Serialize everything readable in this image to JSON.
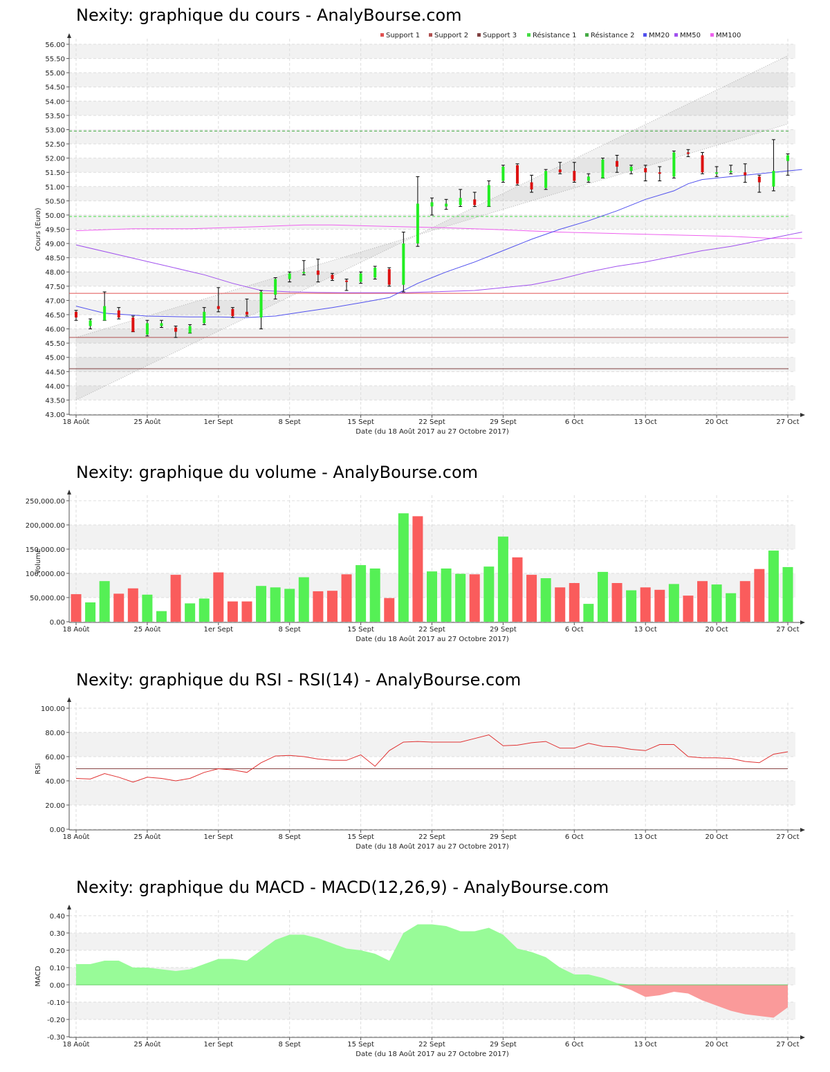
{
  "date_axis": {
    "xlabel": "Date (du 18 Août 2017 au 27 Octobre 2017)",
    "tick_labels": [
      "18 Août",
      "25 Août",
      "1er Sept",
      "8 Sept",
      "15 Sept",
      "22 Sept",
      "29 Sept",
      "6 Oct",
      "13 Oct",
      "20 Oct",
      "27 Oct"
    ],
    "tick_index": [
      0,
      5,
      10,
      15,
      20,
      25,
      30,
      35,
      40,
      45,
      50
    ]
  },
  "chart_data": [
    {
      "type": "candlestick",
      "title": "Nexity: graphique du cours - AnalyBourse.com",
      "xlabel": "Date (du 18 Août 2017 au 27 Octobre 2017)",
      "ylabel": "Cours (Euro)",
      "ylim": [
        43,
        56
      ],
      "yticks": [
        "43.00",
        "43.50",
        "44.00",
        "44.50",
        "45.00",
        "45.50",
        "46.00",
        "46.50",
        "47.00",
        "47.50",
        "48.00",
        "48.50",
        "49.00",
        "49.50",
        "50.00",
        "50.50",
        "51.00",
        "51.50",
        "52.00",
        "52.50",
        "53.00",
        "53.50",
        "54.00",
        "54.50",
        "55.00",
        "55.50",
        "56.00"
      ],
      "legend": [
        "Support 1",
        "Support 2",
        "Support 3",
        "Résistance 1",
        "Résistance 2",
        "MM20",
        "MM50",
        "MM100"
      ],
      "legend_colors": [
        "#e05050",
        "#b05050",
        "#804040",
        "#44dd44",
        "#44aa44",
        "#5050ee",
        "#a050ee",
        "#ee60ee"
      ],
      "legend_position": "top-right",
      "candles": [
        {
          "o": 46.6,
          "c": 46.4,
          "h": 46.65,
          "l": 46.3
        },
        {
          "o": 46.1,
          "c": 46.3,
          "h": 46.35,
          "l": 46.0
        },
        {
          "o": 46.3,
          "c": 46.8,
          "h": 47.3,
          "l": 46.3
        },
        {
          "o": 46.65,
          "c": 46.4,
          "h": 46.75,
          "l": 46.35
        },
        {
          "o": 46.4,
          "c": 45.9,
          "h": 46.45,
          "l": 45.9
        },
        {
          "o": 45.8,
          "c": 46.2,
          "h": 46.3,
          "l": 45.75
        },
        {
          "o": 46.1,
          "c": 46.2,
          "h": 46.3,
          "l": 46.05
        },
        {
          "o": 46.05,
          "c": 45.9,
          "h": 46.1,
          "l": 45.7
        },
        {
          "o": 45.85,
          "c": 46.1,
          "h": 46.15,
          "l": 45.85
        },
        {
          "o": 46.2,
          "c": 46.6,
          "h": 46.75,
          "l": 46.15
        },
        {
          "o": 46.8,
          "c": 46.7,
          "h": 47.45,
          "l": 46.6
        },
        {
          "o": 46.7,
          "c": 46.45,
          "h": 46.75,
          "l": 46.4
        },
        {
          "o": 46.6,
          "c": 46.5,
          "h": 47.05,
          "l": 46.45
        },
        {
          "o": 46.4,
          "c": 47.3,
          "h": 47.35,
          "l": 46.0
        },
        {
          "o": 47.2,
          "c": 47.75,
          "h": 47.8,
          "l": 47.05
        },
        {
          "o": 47.75,
          "c": 47.95,
          "h": 48.0,
          "l": 47.65
        },
        {
          "o": 47.95,
          "c": 48.0,
          "h": 48.4,
          "l": 47.9
        },
        {
          "o": 48.05,
          "c": 47.9,
          "h": 48.45,
          "l": 47.65
        },
        {
          "o": 47.9,
          "c": 47.75,
          "h": 47.95,
          "l": 47.7
        },
        {
          "o": 47.7,
          "c": 47.65,
          "h": 47.75,
          "l": 47.35
        },
        {
          "o": 47.65,
          "c": 47.95,
          "h": 48.0,
          "l": 47.6
        },
        {
          "o": 47.8,
          "c": 48.15,
          "h": 48.2,
          "l": 47.75
        },
        {
          "o": 48.1,
          "c": 47.55,
          "h": 48.15,
          "l": 47.5
        },
        {
          "o": 47.55,
          "c": 49.0,
          "h": 49.4,
          "l": 47.3
        },
        {
          "o": 49.0,
          "c": 50.4,
          "h": 51.35,
          "l": 48.9
        },
        {
          "o": 50.3,
          "c": 50.45,
          "h": 50.6,
          "l": 50.0
        },
        {
          "o": 50.3,
          "c": 50.4,
          "h": 50.55,
          "l": 50.2
        },
        {
          "o": 50.35,
          "c": 50.6,
          "h": 50.9,
          "l": 50.3
        },
        {
          "o": 50.55,
          "c": 50.35,
          "h": 50.8,
          "l": 50.3
        },
        {
          "o": 50.3,
          "c": 51.05,
          "h": 51.2,
          "l": 50.3
        },
        {
          "o": 51.2,
          "c": 51.7,
          "h": 51.75,
          "l": 51.15
        },
        {
          "o": 51.75,
          "c": 51.1,
          "h": 51.8,
          "l": 51.05
        },
        {
          "o": 51.15,
          "c": 50.9,
          "h": 51.4,
          "l": 50.8
        },
        {
          "o": 50.95,
          "c": 51.55,
          "h": 51.6,
          "l": 50.9
        },
        {
          "o": 51.6,
          "c": 51.5,
          "h": 51.85,
          "l": 51.45
        },
        {
          "o": 51.55,
          "c": 51.2,
          "h": 51.85,
          "l": 51.15
        },
        {
          "o": 51.2,
          "c": 51.35,
          "h": 51.45,
          "l": 51.15
        },
        {
          "o": 51.3,
          "c": 51.95,
          "h": 52.0,
          "l": 51.3
        },
        {
          "o": 51.9,
          "c": 51.7,
          "h": 52.1,
          "l": 51.5
        },
        {
          "o": 51.55,
          "c": 51.7,
          "h": 51.75,
          "l": 51.45
        },
        {
          "o": 51.65,
          "c": 51.5,
          "h": 51.75,
          "l": 51.2
        },
        {
          "o": 51.5,
          "c": 51.45,
          "h": 51.7,
          "l": 51.2
        },
        {
          "o": 51.35,
          "c": 52.2,
          "h": 52.25,
          "l": 51.3
        },
        {
          "o": 52.2,
          "c": 52.15,
          "h": 52.3,
          "l": 52.05
        },
        {
          "o": 52.1,
          "c": 51.5,
          "h": 52.2,
          "l": 51.45
        },
        {
          "o": 51.45,
          "c": 51.5,
          "h": 51.7,
          "l": 51.35
        },
        {
          "o": 51.5,
          "c": 51.55,
          "h": 51.75,
          "l": 51.45
        },
        {
          "o": 51.5,
          "c": 51.4,
          "h": 51.8,
          "l": 51.15
        },
        {
          "o": 51.35,
          "c": 51.15,
          "h": 51.4,
          "l": 50.8
        },
        {
          "o": 51.0,
          "c": 51.55,
          "h": 52.65,
          "l": 50.85
        },
        {
          "o": 51.9,
          "c": 52.1,
          "h": 52.15,
          "l": 51.4
        }
      ],
      "support_1": 47.25,
      "support_2": 45.7,
      "support_3": 44.6,
      "resistance_1": 49.95,
      "resistance_2": 52.95,
      "channel_lower": [
        45.7,
        53.2
      ],
      "channel_upper": [
        43.5,
        55.6
      ],
      "mm20": [
        [
          0,
          46.8
        ],
        [
          2,
          46.55
        ],
        [
          5,
          46.45
        ],
        [
          8,
          46.42
        ],
        [
          10,
          46.42
        ],
        [
          12,
          46.4
        ],
        [
          14,
          46.45
        ],
        [
          16,
          46.6
        ],
        [
          18,
          46.75
        ],
        [
          20,
          46.92
        ],
        [
          22,
          47.1
        ],
        [
          24,
          47.6
        ],
        [
          26,
          48.0
        ],
        [
          28,
          48.35
        ],
        [
          30,
          48.75
        ],
        [
          32,
          49.15
        ],
        [
          34,
          49.5
        ],
        [
          36,
          49.8
        ],
        [
          38,
          50.15
        ],
        [
          40,
          50.55
        ],
        [
          42,
          50.85
        ],
        [
          43,
          51.1
        ],
        [
          44,
          51.25
        ],
        [
          46,
          51.35
        ],
        [
          48,
          51.45
        ],
        [
          50,
          51.55
        ],
        [
          51,
          51.6
        ]
      ],
      "mm50": [
        [
          0,
          48.95
        ],
        [
          3,
          48.6
        ],
        [
          6,
          48.25
        ],
        [
          9,
          47.9
        ],
        [
          11,
          47.6
        ],
        [
          13,
          47.35
        ],
        [
          15,
          47.3
        ],
        [
          17,
          47.28
        ],
        [
          19,
          47.27
        ],
        [
          21,
          47.27
        ],
        [
          23,
          47.27
        ],
        [
          25,
          47.3
        ],
        [
          28,
          47.35
        ],
        [
          30,
          47.45
        ],
        [
          32,
          47.55
        ],
        [
          34,
          47.75
        ],
        [
          36,
          48.0
        ],
        [
          38,
          48.2
        ],
        [
          40,
          48.35
        ],
        [
          42,
          48.55
        ],
        [
          44,
          48.75
        ],
        [
          46,
          48.9
        ],
        [
          48,
          49.1
        ],
        [
          50,
          49.3
        ],
        [
          51,
          49.4
        ]
      ],
      "mm100": [
        [
          0,
          49.45
        ],
        [
          4,
          49.52
        ],
        [
          8,
          49.52
        ],
        [
          12,
          49.58
        ],
        [
          16,
          49.65
        ],
        [
          18,
          49.65
        ],
        [
          22,
          49.6
        ],
        [
          26,
          49.55
        ],
        [
          30,
          49.48
        ],
        [
          34,
          49.4
        ],
        [
          38,
          49.35
        ],
        [
          42,
          49.3
        ],
        [
          46,
          49.25
        ],
        [
          49,
          49.18
        ],
        [
          51,
          49.18
        ]
      ]
    },
    {
      "type": "bar",
      "title": "Nexity: graphique du volume - AnalyBourse.com",
      "xlabel": "Date (du 18 Août 2017 au 27 Octobre 2017)",
      "ylabel": "Volume",
      "ylim": [
        0,
        250000
      ],
      "yticks": [
        "0.00",
        "50,000.00",
        "100,000.00",
        "150,000.00",
        "200,000.00",
        "250,000.00"
      ],
      "values": [
        57000,
        40000,
        84000,
        58000,
        69000,
        56000,
        22000,
        97000,
        38000,
        48000,
        102000,
        42000,
        42000,
        74000,
        71000,
        68000,
        92000,
        63000,
        64000,
        98000,
        117000,
        110000,
        49000,
        224000,
        218000,
        104000,
        110000,
        99000,
        98000,
        114000,
        176000,
        133000,
        97000,
        90000,
        71000,
        80000,
        37000,
        103000,
        80000,
        65000,
        71000,
        66000,
        78000,
        54000,
        84000,
        77000,
        59000,
        84000,
        109000,
        147000,
        113000
      ],
      "colors": [
        "r",
        "g",
        "g",
        "r",
        "r",
        "g",
        "g",
        "r",
        "g",
        "g",
        "r",
        "r",
        "r",
        "g",
        "g",
        "g",
        "g",
        "r",
        "r",
        "r",
        "g",
        "g",
        "r",
        "g",
        "r",
        "g",
        "g",
        "g",
        "r",
        "g",
        "g",
        "r",
        "r",
        "g",
        "r",
        "r",
        "g",
        "g",
        "r",
        "g",
        "r",
        "r",
        "g",
        "r",
        "r",
        "g",
        "g",
        "r",
        "r",
        "g",
        "g"
      ]
    },
    {
      "type": "line",
      "title": "Nexity: graphique du RSI - RSI(14) - AnalyBourse.com",
      "xlabel": "Date (du 18 Août 2017 au 27 Octobre 2017)",
      "ylabel": "RSI",
      "ylim": [
        0,
        100
      ],
      "yticks": [
        "0.00",
        "20.00",
        "40.00",
        "60.00",
        "80.00",
        "100.00"
      ],
      "reference": 50,
      "values": [
        42,
        41.5,
        46,
        43,
        39,
        43,
        42,
        40,
        42,
        47,
        50,
        49,
        47,
        55,
        60.5,
        61,
        60,
        58,
        57,
        57,
        61.5,
        52,
        65,
        72,
        72.5,
        72,
        72,
        72,
        75,
        78,
        69,
        69.5,
        71.5,
        72.5,
        67,
        67,
        71,
        68.5,
        68,
        66,
        65,
        70,
        70,
        60,
        59,
        59,
        58.5,
        56,
        55,
        62,
        64
      ]
    },
    {
      "type": "area",
      "title": "Nexity: graphique du MACD - MACD(12,26,9) - AnalyBourse.com",
      "xlabel": "Date (du 18 Août 2017 au 27 Octobre 2017)",
      "ylabel": "MACD",
      "ylim": [
        -0.3,
        0.4
      ],
      "yticks": [
        "-0.30",
        "-0.20",
        "-0.10",
        "0.00",
        "0.10",
        "0.20",
        "0.30",
        "0.40"
      ],
      "values": [
        0.12,
        0.12,
        0.14,
        0.14,
        0.1,
        0.1,
        0.09,
        0.08,
        0.09,
        0.12,
        0.15,
        0.15,
        0.14,
        0.2,
        0.26,
        0.29,
        0.29,
        0.27,
        0.24,
        0.21,
        0.2,
        0.18,
        0.14,
        0.3,
        0.35,
        0.35,
        0.34,
        0.31,
        0.31,
        0.33,
        0.29,
        0.21,
        0.19,
        0.16,
        0.1,
        0.06,
        0.06,
        0.04,
        0.01,
        -0.03,
        -0.07,
        -0.06,
        -0.04,
        -0.05,
        -0.09,
        -0.12,
        -0.15,
        -0.17,
        -0.18,
        -0.19,
        -0.13
      ]
    }
  ]
}
